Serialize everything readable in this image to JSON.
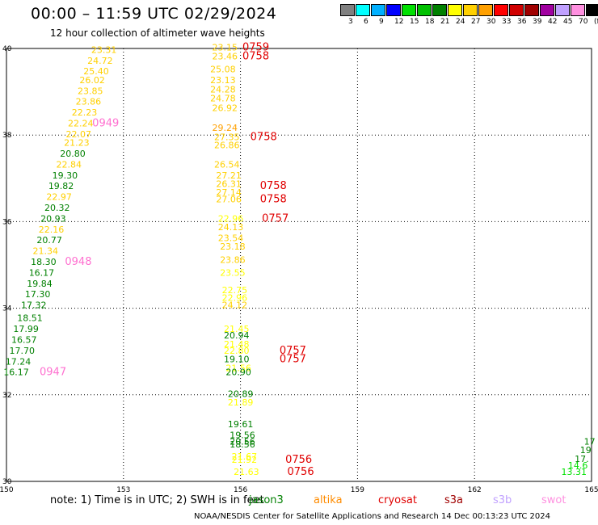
{
  "title": "00:00 – 11:59 UTC 02/29/2024",
  "subtitle": "12 hour collection of altimeter wave heights",
  "legend": {
    "colors": [
      "#808080",
      "#00ffff",
      "#00b0ff",
      "#0000ff",
      "#00e000",
      "#00c000",
      "#008000",
      "#ffff00",
      "#ffd000",
      "#ffa000",
      "#ff0000",
      "#d00000",
      "#a00000",
      "#a000a0",
      "#c0a0ff",
      "#ff90e0",
      "#000000"
    ],
    "labels": [
      "3",
      "6",
      "9",
      "12",
      "15",
      "18",
      "21",
      "24",
      "27",
      "30",
      "33",
      "36",
      "39",
      "42",
      "45",
      "70",
      "(ft)"
    ]
  },
  "map": {
    "lon_ticks": [
      "150",
      "153",
      "156",
      "159",
      "162",
      "165"
    ],
    "lat_ticks": [
      "40",
      "38",
      "36",
      "34",
      "32",
      "30"
    ]
  },
  "chart_data": {
    "type": "scatter",
    "title": "12 hour collection of altimeter wave heights",
    "x_unit": "longitude (deg E)",
    "y_unit": "latitude (deg N)",
    "xlim": [
      150,
      165
    ],
    "ylim": [
      30,
      40
    ],
    "grid": true,
    "value_unit": "ft",
    "tracks": [
      {
        "satellite": "jason3",
        "color": "#008000",
        "points": [
          {
            "lon": 152.5,
            "lat": 39.9,
            "v": "23.31",
            "c": "#ffd000"
          },
          {
            "lon": 152.4,
            "lat": 39.65,
            "v": "24.72",
            "c": "#ffd000"
          },
          {
            "lon": 152.3,
            "lat": 39.4,
            "v": "25.40",
            "c": "#ffd000"
          },
          {
            "lon": 152.2,
            "lat": 39.2,
            "v": "26.02",
            "c": "#ffd000"
          },
          {
            "lon": 152.15,
            "lat": 38.95,
            "v": "23.85",
            "c": "#ffd000"
          },
          {
            "lon": 152.1,
            "lat": 38.7,
            "v": "23.86",
            "c": "#ffd000"
          },
          {
            "lon": 152.0,
            "lat": 38.45,
            "v": "22.23",
            "c": "#ffd000"
          },
          {
            "lon": 151.9,
            "lat": 38.2,
            "v": "22.24",
            "c": "#ffd000"
          },
          {
            "lon": 151.85,
            "lat": 37.95,
            "v": "22.07",
            "c": "#ffd000"
          },
          {
            "lon": 151.8,
            "lat": 37.75,
            "v": "21.23",
            "c": "#ffd000"
          },
          {
            "lon": 151.7,
            "lat": 37.5,
            "v": "20.80",
            "c": "#008000"
          },
          {
            "lon": 151.6,
            "lat": 37.25,
            "v": "22.84",
            "c": "#ffd000"
          },
          {
            "lon": 151.5,
            "lat": 37.0,
            "v": "19.30",
            "c": "#008000"
          },
          {
            "lon": 151.4,
            "lat": 36.75,
            "v": "19.82",
            "c": "#008000"
          },
          {
            "lon": 151.35,
            "lat": 36.5,
            "v": "22.97",
            "c": "#ffd000"
          },
          {
            "lon": 151.3,
            "lat": 36.25,
            "v": "20.32",
            "c": "#008000"
          },
          {
            "lon": 151.2,
            "lat": 36.0,
            "v": "20.93",
            "c": "#008000"
          },
          {
            "lon": 151.15,
            "lat": 35.75,
            "v": "22.16",
            "c": "#ffd000"
          },
          {
            "lon": 151.1,
            "lat": 35.5,
            "v": "20.77",
            "c": "#008000"
          },
          {
            "lon": 151.0,
            "lat": 35.25,
            "v": "21.34",
            "c": "#ffd000"
          },
          {
            "lon": 150.95,
            "lat": 35.0,
            "v": "18.30",
            "c": "#008000"
          },
          {
            "lon": 150.9,
            "lat": 34.75,
            "v": "16.17",
            "c": "#008000"
          },
          {
            "lon": 150.85,
            "lat": 34.5,
            "v": "19.84",
            "c": "#008000"
          },
          {
            "lon": 150.8,
            "lat": 34.25,
            "v": "17.30",
            "c": "#008000"
          },
          {
            "lon": 150.7,
            "lat": 34.0,
            "v": "17.32",
            "c": "#008000"
          },
          {
            "lon": 150.6,
            "lat": 33.7,
            "v": "18.51",
            "c": "#008000"
          },
          {
            "lon": 150.5,
            "lat": 33.45,
            "v": "17.99",
            "c": "#008000"
          },
          {
            "lon": 150.45,
            "lat": 33.2,
            "v": "16.57",
            "c": "#008000"
          },
          {
            "lon": 150.4,
            "lat": 32.95,
            "v": "17.70",
            "c": "#008000"
          },
          {
            "lon": 150.3,
            "lat": 32.7,
            "v": "17.24",
            "c": "#008000"
          },
          {
            "lon": 150.25,
            "lat": 32.45,
            "v": "16.17",
            "c": "#008000"
          }
        ]
      },
      {
        "satellite": "jason3",
        "color": "#008000",
        "points": [
          {
            "lon": 155.6,
            "lat": 39.95,
            "v": "23.15",
            "c": "#ffd000"
          },
          {
            "lon": 155.6,
            "lat": 39.75,
            "v": "23.46",
            "c": "#ffd000"
          },
          {
            "lon": 155.55,
            "lat": 39.45,
            "v": "25.08",
            "c": "#ffd000"
          },
          {
            "lon": 155.55,
            "lat": 39.2,
            "v": "23.13",
            "c": "#ffd000"
          },
          {
            "lon": 155.55,
            "lat": 38.98,
            "v": "24.28",
            "c": "#ffd000"
          },
          {
            "lon": 155.55,
            "lat": 38.78,
            "v": "24.78",
            "c": "#ffd000"
          },
          {
            "lon": 155.6,
            "lat": 38.55,
            "v": "26.92",
            "c": "#ffd000"
          },
          {
            "lon": 155.6,
            "lat": 38.1,
            "v": "29.24",
            "c": "#ffa000"
          },
          {
            "lon": 155.65,
            "lat": 37.88,
            "v": "27.35",
            "c": "#ffd000"
          },
          {
            "lon": 155.65,
            "lat": 37.7,
            "v": "26.86",
            "c": "#ffd000"
          },
          {
            "lon": 155.65,
            "lat": 37.25,
            "v": "26.54",
            "c": "#ffd000"
          },
          {
            "lon": 155.7,
            "lat": 37.0,
            "v": "27.21",
            "c": "#ffd000"
          },
          {
            "lon": 155.7,
            "lat": 36.8,
            "v": "26.31",
            "c": "#ffd000"
          },
          {
            "lon": 155.7,
            "lat": 36.6,
            "v": "27.14",
            "c": "#ffd000"
          },
          {
            "lon": 155.7,
            "lat": 36.45,
            "v": "27.06",
            "c": "#ffd000"
          },
          {
            "lon": 155.75,
            "lat": 36.0,
            "v": "22.96",
            "c": "#ffff00"
          },
          {
            "lon": 155.75,
            "lat": 35.8,
            "v": "24.13",
            "c": "#ffd000"
          },
          {
            "lon": 155.75,
            "lat": 35.55,
            "v": "23.54",
            "c": "#ffd000"
          },
          {
            "lon": 155.8,
            "lat": 35.35,
            "v": "23.18",
            "c": "#ffd000"
          },
          {
            "lon": 155.8,
            "lat": 35.05,
            "v": "23.86",
            "c": "#ffd000"
          },
          {
            "lon": 155.8,
            "lat": 34.75,
            "v": "23.55",
            "c": "#ffff00"
          },
          {
            "lon": 155.85,
            "lat": 34.35,
            "v": "22.75",
            "c": "#ffff00"
          },
          {
            "lon": 155.85,
            "lat": 34.17,
            "v": "22.96",
            "c": "#ffff00"
          },
          {
            "lon": 155.85,
            "lat": 34.0,
            "v": "24.12",
            "c": "#ffd000"
          },
          {
            "lon": 155.9,
            "lat": 33.45,
            "v": "21.45",
            "c": "#ffff00"
          },
          {
            "lon": 155.9,
            "lat": 33.3,
            "v": "20.94",
            "c": "#008000"
          },
          {
            "lon": 155.9,
            "lat": 33.1,
            "v": "21.48",
            "c": "#ffff00"
          },
          {
            "lon": 155.9,
            "lat": 32.95,
            "v": "22.80",
            "c": "#ffff00"
          },
          {
            "lon": 155.9,
            "lat": 32.75,
            "v": "19.10",
            "c": "#008000"
          },
          {
            "lon": 155.95,
            "lat": 32.55,
            "v": "21.56",
            "c": "#ffff00"
          },
          {
            "lon": 155.95,
            "lat": 32.45,
            "v": "20.90",
            "c": "#008000"
          },
          {
            "lon": 156.0,
            "lat": 31.95,
            "v": "20.89",
            "c": "#008000"
          },
          {
            "lon": 156.0,
            "lat": 31.75,
            "v": "21.89",
            "c": "#ffff00"
          },
          {
            "lon": 156.0,
            "lat": 31.25,
            "v": "19.61",
            "c": "#008000"
          },
          {
            "lon": 156.05,
            "lat": 31.0,
            "v": "19.56",
            "c": "#008000"
          },
          {
            "lon": 156.05,
            "lat": 30.85,
            "v": "20.56",
            "c": "#008000"
          },
          {
            "lon": 156.05,
            "lat": 30.78,
            "v": "18.56",
            "c": "#008000"
          },
          {
            "lon": 156.1,
            "lat": 30.5,
            "v": "21.67",
            "c": "#ffff00"
          },
          {
            "lon": 156.1,
            "lat": 30.43,
            "v": "21.92",
            "c": "#ffff00"
          },
          {
            "lon": 156.15,
            "lat": 30.15,
            "v": "21.63",
            "c": "#ffff00"
          }
        ]
      },
      {
        "satellite": "jason3",
        "color": "#008000",
        "points": [
          {
            "lon": 164.95,
            "lat": 30.85,
            "v": "17",
            "c": "#008000"
          },
          {
            "lon": 164.85,
            "lat": 30.65,
            "v": "19",
            "c": "#008000"
          },
          {
            "lon": 164.75,
            "lat": 30.45,
            "v": "17.",
            "c": "#008000"
          },
          {
            "lon": 164.65,
            "lat": 30.3,
            "v": "14.6",
            "c": "#00e000"
          },
          {
            "lon": 164.55,
            "lat": 30.15,
            "v": "13.31",
            "c": "#00e000"
          }
        ]
      }
    ],
    "time_labels": [
      {
        "lon": 152.2,
        "lat": 38.2,
        "t": "0949",
        "c": "#ff70d0"
      },
      {
        "lon": 151.5,
        "lat": 35.0,
        "t": "0948",
        "c": "#ff70d0"
      },
      {
        "lon": 150.85,
        "lat": 32.45,
        "t": "0947",
        "c": "#ff70d0"
      },
      {
        "lon": 156.05,
        "lat": 39.95,
        "t": "0759",
        "c": "#e00000"
      },
      {
        "lon": 156.05,
        "lat": 39.75,
        "t": "0758",
        "c": "#e00000"
      },
      {
        "lon": 156.25,
        "lat": 37.88,
        "t": "0758",
        "c": "#e00000"
      },
      {
        "lon": 156.5,
        "lat": 36.75,
        "t": "0758",
        "c": "#e00000"
      },
      {
        "lon": 156.5,
        "lat": 36.45,
        "t": "0758",
        "c": "#e00000"
      },
      {
        "lon": 156.55,
        "lat": 36.0,
        "t": "0757",
        "c": "#e00000"
      },
      {
        "lon": 157.0,
        "lat": 32.95,
        "t": "0757",
        "c": "#e00000"
      },
      {
        "lon": 157.0,
        "lat": 32.75,
        "t": "0757",
        "c": "#e00000"
      },
      {
        "lon": 157.15,
        "lat": 30.43,
        "t": "0756",
        "c": "#e00000"
      },
      {
        "lon": 157.2,
        "lat": 30.15,
        "t": "0756",
        "c": "#e00000"
      }
    ]
  },
  "note": "note:  1) Time is in UTC;  2) SWH is in feet",
  "satellites": [
    {
      "name": "jason3",
      "color": "#008000"
    },
    {
      "name": "altika",
      "color": "#ff8c00"
    },
    {
      "name": "cryosat",
      "color": "#e00000"
    },
    {
      "name": "s3a",
      "color": "#a00000"
    },
    {
      "name": "s3b",
      "color": "#c0a0ff"
    },
    {
      "name": "swot",
      "color": "#ff90e0"
    }
  ],
  "footer": "NOAA/NESDIS Center for Satellite Applications and Research     14 Dec 00:13:23 UTC 2024"
}
